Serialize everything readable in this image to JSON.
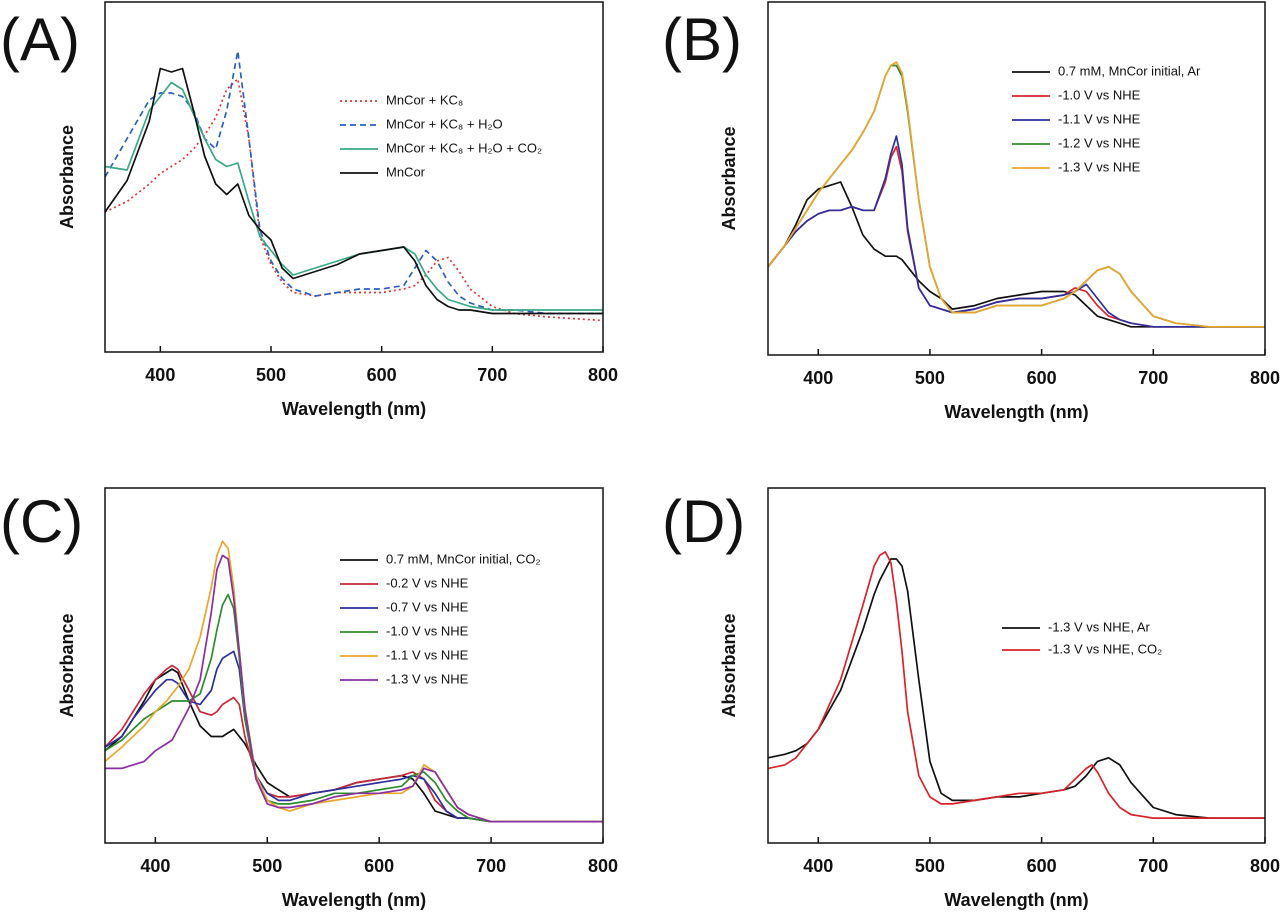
{
  "chart_data": [
    {
      "type": "line",
      "title": "(A)",
      "x_label": "Wavelength (nm)",
      "y_label": "Absorbance",
      "xlim": [
        350,
        800
      ],
      "ylim": [
        0,
        1
      ],
      "xticks": [
        400,
        500,
        600,
        700,
        800
      ],
      "x": [
        350,
        370,
        390,
        400,
        410,
        420,
        430,
        440,
        450,
        460,
        470,
        480,
        490,
        500,
        510,
        520,
        540,
        560,
        580,
        600,
        620,
        630,
        640,
        650,
        660,
        670,
        680,
        700,
        720,
        750,
        800
      ],
      "series": [
        {
          "name": "MnCor + KC₈",
          "color": "#e03535",
          "dash": "dotted",
          "values": [
            0.4,
            0.43,
            0.48,
            0.51,
            0.53,
            0.55,
            0.58,
            0.62,
            0.67,
            0.75,
            0.78,
            0.61,
            0.33,
            0.25,
            0.2,
            0.17,
            0.16,
            0.17,
            0.17,
            0.17,
            0.18,
            0.19,
            0.22,
            0.26,
            0.27,
            0.23,
            0.18,
            0.13,
            0.11,
            0.1,
            0.09
          ]
        },
        {
          "name": "MnCor + KC₈ + H₂O",
          "color": "#2a5fbf",
          "dash": "dashed",
          "values": [
            0.5,
            0.61,
            0.72,
            0.74,
            0.74,
            0.73,
            0.69,
            0.61,
            0.58,
            0.69,
            0.86,
            0.61,
            0.35,
            0.26,
            0.21,
            0.18,
            0.16,
            0.17,
            0.18,
            0.18,
            0.19,
            0.24,
            0.29,
            0.26,
            0.2,
            0.16,
            0.14,
            0.12,
            0.12,
            0.11,
            0.11
          ]
        },
        {
          "name": "MnCor + KC₈ + H₂O + CO₂",
          "color": "#3aa886",
          "dash": "solid",
          "values": [
            0.53,
            0.52,
            0.69,
            0.73,
            0.77,
            0.75,
            0.68,
            0.61,
            0.55,
            0.53,
            0.54,
            0.43,
            0.33,
            0.29,
            0.25,
            0.22,
            0.24,
            0.26,
            0.28,
            0.29,
            0.3,
            0.28,
            0.22,
            0.18,
            0.15,
            0.14,
            0.13,
            0.12,
            0.12,
            0.12,
            0.12
          ]
        },
        {
          "name": "MnCor",
          "color": "#111111",
          "dash": "solid",
          "values": [
            0.4,
            0.49,
            0.66,
            0.81,
            0.8,
            0.81,
            0.69,
            0.56,
            0.48,
            0.45,
            0.48,
            0.39,
            0.35,
            0.32,
            0.24,
            0.21,
            0.23,
            0.25,
            0.28,
            0.29,
            0.3,
            0.26,
            0.19,
            0.15,
            0.13,
            0.12,
            0.12,
            0.11,
            0.11,
            0.11,
            0.11
          ]
        }
      ]
    },
    {
      "type": "line",
      "title": "(B)",
      "x_label": "Wavelength (nm)",
      "y_label": "Absorbance",
      "xlim": [
        355,
        800
      ],
      "ylim": [
        0,
        1
      ],
      "xticks": [
        400,
        500,
        600,
        700,
        800
      ],
      "x": [
        355,
        370,
        380,
        390,
        400,
        410,
        420,
        430,
        440,
        450,
        460,
        465,
        470,
        475,
        480,
        490,
        500,
        510,
        520,
        540,
        560,
        580,
        600,
        620,
        630,
        640,
        650,
        660,
        670,
        680,
        700,
        720,
        750,
        800
      ],
      "series": [
        {
          "name": "0.7 mM, MnCor initial, Ar",
          "color": "#111111",
          "dash": "solid",
          "values": [
            0.25,
            0.31,
            0.37,
            0.44,
            0.47,
            0.48,
            0.49,
            0.42,
            0.34,
            0.3,
            0.28,
            0.28,
            0.28,
            0.27,
            0.25,
            0.21,
            0.18,
            0.16,
            0.13,
            0.14,
            0.16,
            0.17,
            0.18,
            0.18,
            0.17,
            0.14,
            0.11,
            0.1,
            0.09,
            0.08,
            0.08,
            0.08,
            0.08,
            0.08
          ]
        },
        {
          "name": "-1.0 V vs NHE",
          "color": "#d8232a",
          "dash": "solid",
          "values": [
            0.25,
            0.31,
            0.35,
            0.38,
            0.4,
            0.41,
            0.41,
            0.42,
            0.41,
            0.41,
            0.49,
            0.56,
            0.59,
            0.52,
            0.35,
            0.19,
            0.14,
            0.13,
            0.12,
            0.13,
            0.15,
            0.16,
            0.16,
            0.17,
            0.19,
            0.18,
            0.14,
            0.11,
            0.1,
            0.09,
            0.08,
            0.08,
            0.08,
            0.08
          ]
        },
        {
          "name": "-1.1 V vs NHE",
          "color": "#2b2f9e",
          "dash": "solid",
          "values": [
            0.25,
            0.31,
            0.35,
            0.38,
            0.4,
            0.41,
            0.41,
            0.42,
            0.41,
            0.41,
            0.5,
            0.57,
            0.62,
            0.54,
            0.36,
            0.19,
            0.14,
            0.13,
            0.12,
            0.13,
            0.15,
            0.16,
            0.16,
            0.17,
            0.18,
            0.2,
            0.16,
            0.12,
            0.1,
            0.09,
            0.08,
            0.08,
            0.08,
            0.08
          ]
        },
        {
          "name": "-1.2 V vs NHE",
          "color": "#2e8b2e",
          "dash": "solid",
          "values": [
            0.25,
            0.31,
            0.36,
            0.41,
            0.46,
            0.5,
            0.54,
            0.58,
            0.63,
            0.69,
            0.79,
            0.82,
            0.82,
            0.79,
            0.69,
            0.44,
            0.25,
            0.16,
            0.12,
            0.12,
            0.14,
            0.14,
            0.14,
            0.16,
            0.18,
            0.21,
            0.24,
            0.25,
            0.23,
            0.18,
            0.11,
            0.09,
            0.08,
            0.08
          ]
        },
        {
          "name": "-1.3 V vs NHE",
          "color": "#eaa52e",
          "dash": "solid",
          "values": [
            0.25,
            0.31,
            0.36,
            0.41,
            0.46,
            0.5,
            0.54,
            0.58,
            0.63,
            0.69,
            0.79,
            0.82,
            0.83,
            0.8,
            0.7,
            0.44,
            0.25,
            0.16,
            0.12,
            0.12,
            0.14,
            0.14,
            0.14,
            0.16,
            0.18,
            0.21,
            0.24,
            0.25,
            0.23,
            0.18,
            0.11,
            0.09,
            0.08,
            0.08
          ]
        }
      ]
    },
    {
      "type": "line",
      "title": "(C)",
      "x_label": "Wavelength (nm)",
      "y_label": "Absorbance",
      "xlim": [
        355,
        800
      ],
      "ylim": [
        0,
        1
      ],
      "xticks": [
        400,
        500,
        600,
        700,
        800
      ],
      "x": [
        355,
        370,
        380,
        390,
        400,
        410,
        415,
        420,
        430,
        440,
        450,
        455,
        460,
        465,
        470,
        475,
        480,
        490,
        500,
        510,
        520,
        540,
        560,
        580,
        600,
        620,
        630,
        640,
        650,
        660,
        670,
        680,
        700,
        720,
        750,
        800
      ],
      "series": [
        {
          "name": "0.7 mM, MnCor initial, CO₂",
          "color": "#111111",
          "dash": "solid",
          "values": [
            0.26,
            0.3,
            0.35,
            0.4,
            0.46,
            0.48,
            0.49,
            0.48,
            0.4,
            0.33,
            0.3,
            0.3,
            0.3,
            0.31,
            0.32,
            0.3,
            0.28,
            0.22,
            0.17,
            0.15,
            0.13,
            0.14,
            0.15,
            0.17,
            0.18,
            0.19,
            0.18,
            0.14,
            0.09,
            0.08,
            0.07,
            0.07,
            0.06,
            0.06,
            0.06,
            0.06
          ]
        },
        {
          "name": "-0.2 V vs NHE",
          "color": "#c8283a",
          "dash": "solid",
          "values": [
            0.27,
            0.32,
            0.37,
            0.42,
            0.46,
            0.49,
            0.5,
            0.49,
            0.43,
            0.37,
            0.36,
            0.37,
            0.39,
            0.4,
            0.41,
            0.39,
            0.3,
            0.19,
            0.14,
            0.13,
            0.13,
            0.14,
            0.15,
            0.17,
            0.18,
            0.19,
            0.2,
            0.18,
            0.12,
            0.09,
            0.07,
            0.07,
            0.06,
            0.06,
            0.06,
            0.06
          ]
        },
        {
          "name": "-0.7 V vs NHE",
          "color": "#2b2f9e",
          "dash": "solid",
          "values": [
            0.27,
            0.3,
            0.35,
            0.39,
            0.43,
            0.46,
            0.46,
            0.45,
            0.4,
            0.39,
            0.43,
            0.49,
            0.52,
            0.53,
            0.54,
            0.49,
            0.35,
            0.19,
            0.14,
            0.12,
            0.12,
            0.14,
            0.15,
            0.16,
            0.17,
            0.18,
            0.19,
            0.18,
            0.14,
            0.09,
            0.07,
            0.07,
            0.06,
            0.06,
            0.06,
            0.06
          ]
        },
        {
          "name": "-1.0 V vs NHE",
          "color": "#2e8b2e",
          "dash": "solid",
          "values": [
            0.26,
            0.29,
            0.32,
            0.35,
            0.37,
            0.39,
            0.4,
            0.4,
            0.4,
            0.42,
            0.52,
            0.6,
            0.67,
            0.7,
            0.66,
            0.52,
            0.35,
            0.18,
            0.12,
            0.11,
            0.11,
            0.12,
            0.14,
            0.14,
            0.15,
            0.16,
            0.19,
            0.2,
            0.17,
            0.12,
            0.09,
            0.07,
            0.06,
            0.06,
            0.06,
            0.06
          ]
        },
        {
          "name": "-1.1 V vs NHE",
          "color": "#eaa52e",
          "dash": "solid",
          "values": [
            0.23,
            0.27,
            0.3,
            0.33,
            0.37,
            0.4,
            0.42,
            0.44,
            0.49,
            0.58,
            0.72,
            0.81,
            0.85,
            0.83,
            0.72,
            0.54,
            0.38,
            0.19,
            0.12,
            0.1,
            0.09,
            0.11,
            0.12,
            0.13,
            0.14,
            0.14,
            0.16,
            0.22,
            0.2,
            0.15,
            0.1,
            0.08,
            0.06,
            0.06,
            0.06,
            0.06
          ]
        },
        {
          "name": "-1.3 V vs NHE",
          "color": "#8a2ea0",
          "dash": "solid",
          "values": [
            0.21,
            0.21,
            0.22,
            0.23,
            0.26,
            0.28,
            0.29,
            0.32,
            0.38,
            0.46,
            0.65,
            0.77,
            0.81,
            0.8,
            0.69,
            0.54,
            0.38,
            0.18,
            0.11,
            0.1,
            0.1,
            0.11,
            0.13,
            0.14,
            0.14,
            0.15,
            0.16,
            0.21,
            0.2,
            0.15,
            0.1,
            0.08,
            0.06,
            0.06,
            0.06,
            0.06
          ]
        }
      ]
    },
    {
      "type": "line",
      "title": "(D)",
      "x_label": "Wavelength (nm)",
      "y_label": "Absorbance",
      "xlim": [
        355,
        800
      ],
      "ylim": [
        0,
        1
      ],
      "xticks": [
        400,
        500,
        600,
        700,
        800
      ],
      "x": [
        355,
        370,
        380,
        390,
        400,
        420,
        440,
        450,
        455,
        460,
        465,
        470,
        475,
        480,
        490,
        500,
        510,
        520,
        540,
        560,
        580,
        600,
        620,
        630,
        640,
        645,
        650,
        660,
        670,
        680,
        700,
        720,
        750,
        800
      ],
      "series": [
        {
          "name": "-1.3 V vs NHE, Ar",
          "color": "#111111",
          "dash": "solid",
          "values": [
            0.24,
            0.25,
            0.26,
            0.28,
            0.32,
            0.43,
            0.6,
            0.7,
            0.74,
            0.77,
            0.8,
            0.8,
            0.78,
            0.71,
            0.46,
            0.23,
            0.14,
            0.12,
            0.12,
            0.13,
            0.13,
            0.14,
            0.15,
            0.16,
            0.19,
            0.21,
            0.23,
            0.24,
            0.22,
            0.17,
            0.1,
            0.08,
            0.07,
            0.07
          ]
        },
        {
          "name": "-1.3 V vs NHE, CO₂",
          "color": "#d8232a",
          "dash": "solid",
          "values": [
            0.21,
            0.22,
            0.24,
            0.28,
            0.32,
            0.46,
            0.67,
            0.78,
            0.81,
            0.82,
            0.79,
            0.68,
            0.54,
            0.37,
            0.19,
            0.13,
            0.11,
            0.11,
            0.12,
            0.13,
            0.14,
            0.14,
            0.15,
            0.18,
            0.21,
            0.22,
            0.2,
            0.14,
            0.1,
            0.08,
            0.07,
            0.07,
            0.07,
            0.07
          ]
        }
      ]
    }
  ]
}
